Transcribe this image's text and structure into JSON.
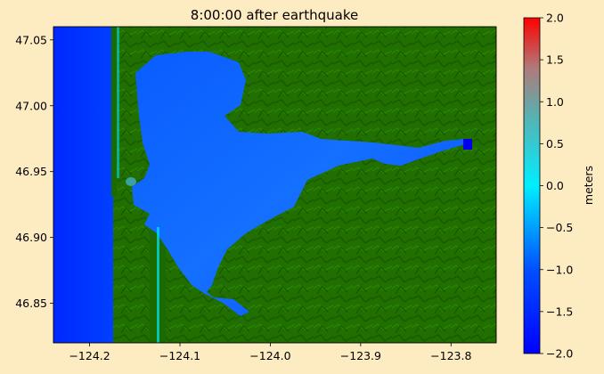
{
  "chart_data": {
    "type": "heatmap",
    "title": "8:00:00 after earthquake",
    "xlabel": "",
    "ylabel": "",
    "xlim": [
      -124.24,
      -123.75
    ],
    "ylim": [
      46.82,
      47.06
    ],
    "x_ticks": [
      -124.2,
      -124.1,
      -124.0,
      -123.9,
      -123.8
    ],
    "x_tick_labels": [
      "−124.2",
      "−124.1",
      "−124.0",
      "−123.9",
      "−123.8"
    ],
    "y_ticks": [
      46.85,
      46.9,
      46.95,
      47.0,
      47.05
    ],
    "y_tick_labels": [
      "46.85",
      "46.90",
      "46.95",
      "47.00",
      "47.05"
    ],
    "colorbar": {
      "label": "meters",
      "range": [
        -2.0,
        2.0
      ],
      "ticks": [
        -2.0,
        -1.5,
        -1.0,
        -0.5,
        0.0,
        0.5,
        1.0,
        1.5,
        2.0
      ],
      "tick_labels": [
        "−2.0",
        "−1.5",
        "−1.0",
        "−0.5",
        "0.0",
        "0.5",
        "1.0",
        "1.5",
        "2.0"
      ],
      "colors": [
        "#0000ff",
        "#00e0ff",
        "#ff0000"
      ]
    },
    "land_color": "#1f6e00",
    "water_color_deep": "#0033ff",
    "water_color_shallow": "#1a6cff"
  }
}
